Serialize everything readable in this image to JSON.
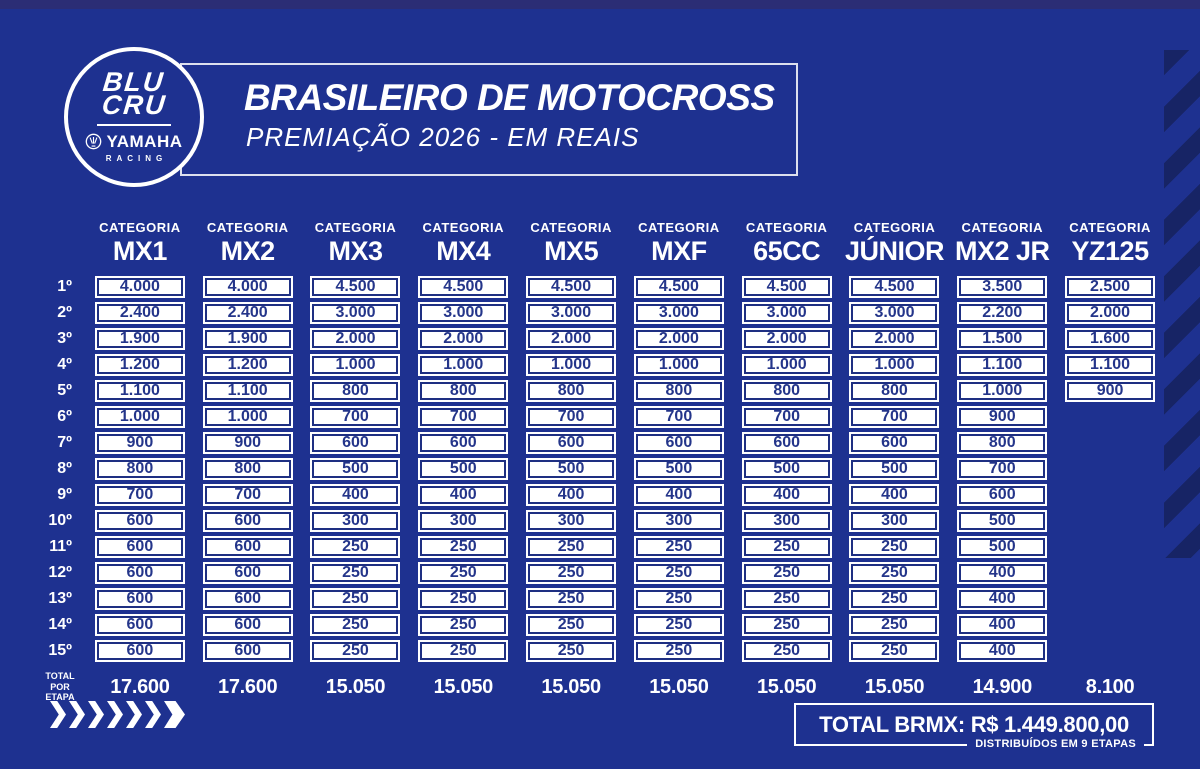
{
  "colors": {
    "background": "#1e3190",
    "top_bar": "#2b2d75",
    "stripe": "#172465",
    "cell_border": "#1e2f82",
    "cell_text": "#24358a"
  },
  "header": {
    "title": "BRASILEIRO DE MOTOCROSS",
    "subtitle": "PREMIAÇÃO 2026 - EM REAIS",
    "logo": {
      "blu": "BLU",
      "cru": "CRU",
      "brand": "YAMAHA",
      "sub": "RACING"
    }
  },
  "table": {
    "category_label": "CATEGORIA",
    "categories": [
      "MX1",
      "MX2",
      "MX3",
      "MX4",
      "MX5",
      "MXF",
      "65CC",
      "JÚNIOR",
      "MX2 JR",
      "YZ125"
    ],
    "positions": [
      "1º",
      "2º",
      "3º",
      "4º",
      "5º",
      "6º",
      "7º",
      "8º",
      "9º",
      "10º",
      "11º",
      "12º",
      "13º",
      "14º",
      "15º"
    ],
    "rows": [
      [
        "4.000",
        "4.000",
        "4.500",
        "4.500",
        "4.500",
        "4.500",
        "4.500",
        "4.500",
        "3.500",
        "2.500"
      ],
      [
        "2.400",
        "2.400",
        "3.000",
        "3.000",
        "3.000",
        "3.000",
        "3.000",
        "3.000",
        "2.200",
        "2.000"
      ],
      [
        "1.900",
        "1.900",
        "2.000",
        "2.000",
        "2.000",
        "2.000",
        "2.000",
        "2.000",
        "1.500",
        "1.600"
      ],
      [
        "1.200",
        "1.200",
        "1.000",
        "1.000",
        "1.000",
        "1.000",
        "1.000",
        "1.000",
        "1.100",
        "1.100"
      ],
      [
        "1.100",
        "1.100",
        "800",
        "800",
        "800",
        "800",
        "800",
        "800",
        "1.000",
        "900"
      ],
      [
        "1.000",
        "1.000",
        "700",
        "700",
        "700",
        "700",
        "700",
        "700",
        "900",
        ""
      ],
      [
        "900",
        "900",
        "600",
        "600",
        "600",
        "600",
        "600",
        "600",
        "800",
        ""
      ],
      [
        "800",
        "800",
        "500",
        "500",
        "500",
        "500",
        "500",
        "500",
        "700",
        ""
      ],
      [
        "700",
        "700",
        "400",
        "400",
        "400",
        "400",
        "400",
        "400",
        "600",
        ""
      ],
      [
        "600",
        "600",
        "300",
        "300",
        "300",
        "300",
        "300",
        "300",
        "500",
        ""
      ],
      [
        "600",
        "600",
        "250",
        "250",
        "250",
        "250",
        "250",
        "250",
        "500",
        ""
      ],
      [
        "600",
        "600",
        "250",
        "250",
        "250",
        "250",
        "250",
        "250",
        "400",
        ""
      ],
      [
        "600",
        "600",
        "250",
        "250",
        "250",
        "250",
        "250",
        "250",
        "400",
        ""
      ],
      [
        "600",
        "600",
        "250",
        "250",
        "250",
        "250",
        "250",
        "250",
        "400",
        ""
      ],
      [
        "600",
        "600",
        "250",
        "250",
        "250",
        "250",
        "250",
        "250",
        "400",
        ""
      ]
    ],
    "total_per_stage_lines": [
      "TOTAL",
      "POR",
      "ETAPA"
    ],
    "totals": [
      "17.600",
      "17.600",
      "15.050",
      "15.050",
      "15.050",
      "15.050",
      "15.050",
      "15.050",
      "14.900",
      "8.100"
    ]
  },
  "footer": {
    "total_text": "TOTAL BRMX: R$ 1.449.800,00",
    "total_sub": "DISTRIBUÍDOS EM 9 ETAPAS"
  },
  "chart_data": {
    "type": "table",
    "title": "BRASILEIRO DE MOTOCROSS — PREMIAÇÃO 2026 - EM REAIS",
    "row_labels": [
      "1º",
      "2º",
      "3º",
      "4º",
      "5º",
      "6º",
      "7º",
      "8º",
      "9º",
      "10º",
      "11º",
      "12º",
      "13º",
      "14º",
      "15º",
      "TOTAL POR ETAPA"
    ],
    "columns": [
      "MX1",
      "MX2",
      "MX3",
      "MX4",
      "MX5",
      "MXF",
      "65CC",
      "JÚNIOR",
      "MX2 JR",
      "YZ125"
    ],
    "series": [
      {
        "name": "MX1",
        "values": [
          4000,
          2400,
          1900,
          1200,
          1100,
          1000,
          900,
          800,
          700,
          600,
          600,
          600,
          600,
          600,
          600
        ],
        "total": 17600
      },
      {
        "name": "MX2",
        "values": [
          4000,
          2400,
          1900,
          1200,
          1100,
          1000,
          900,
          800,
          700,
          600,
          600,
          600,
          600,
          600,
          600
        ],
        "total": 17600
      },
      {
        "name": "MX3",
        "values": [
          4500,
          3000,
          2000,
          1000,
          800,
          700,
          600,
          500,
          400,
          300,
          250,
          250,
          250,
          250,
          250
        ],
        "total": 15050
      },
      {
        "name": "MX4",
        "values": [
          4500,
          3000,
          2000,
          1000,
          800,
          700,
          600,
          500,
          400,
          300,
          250,
          250,
          250,
          250,
          250
        ],
        "total": 15050
      },
      {
        "name": "MX5",
        "values": [
          4500,
          3000,
          2000,
          1000,
          800,
          700,
          600,
          500,
          400,
          300,
          250,
          250,
          250,
          250,
          250
        ],
        "total": 15050
      },
      {
        "name": "MXF",
        "values": [
          4500,
          3000,
          2000,
          1000,
          800,
          700,
          600,
          500,
          400,
          300,
          250,
          250,
          250,
          250,
          250
        ],
        "total": 15050
      },
      {
        "name": "65CC",
        "values": [
          4500,
          3000,
          2000,
          1000,
          800,
          700,
          600,
          500,
          400,
          300,
          250,
          250,
          250,
          250,
          250
        ],
        "total": 15050
      },
      {
        "name": "JÚNIOR",
        "values": [
          4500,
          3000,
          2000,
          1000,
          800,
          700,
          600,
          500,
          400,
          300,
          250,
          250,
          250,
          250,
          250
        ],
        "total": 15050
      },
      {
        "name": "MX2 JR",
        "values": [
          3500,
          2200,
          1500,
          1100,
          1000,
          900,
          800,
          700,
          600,
          500,
          500,
          400,
          400,
          400,
          400
        ],
        "total": 14900
      },
      {
        "name": "YZ125",
        "values": [
          2500,
          2000,
          1600,
          1100,
          900
        ],
        "total": 8100
      }
    ],
    "grand_total_text": "TOTAL BRMX: R$ 1.449.800,00",
    "note": "DISTRIBUÍDOS EM 9 ETAPAS"
  }
}
